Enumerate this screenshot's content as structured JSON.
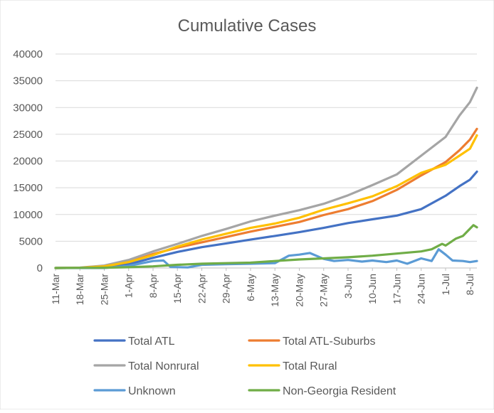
{
  "chart_data": {
    "type": "line",
    "title": "Cumulative Cases",
    "xlabel": "",
    "ylabel": "",
    "ylim": [
      0,
      40000
    ],
    "y_ticks": [
      0,
      5000,
      10000,
      15000,
      20000,
      25000,
      30000,
      35000,
      40000
    ],
    "x_start": "2020-03-11",
    "x_end": "2020-07-10",
    "x_tick_labels": [
      "11-Mar",
      "18-Mar",
      "25-Mar",
      "1-Apr",
      "8-Apr",
      "15-Apr",
      "22-Apr",
      "29-Apr",
      "6-May",
      "13-May",
      "20-May",
      "27-May",
      "3-Jun",
      "10-Jun",
      "17-Jun",
      "24-Jun",
      "1-Jul",
      "8-Jul"
    ],
    "grid": "horizontal",
    "legend_position": "bottom",
    "series": [
      {
        "name": "Total ATL",
        "color": "#4472C4",
        "points": [
          [
            "2020-03-11",
            0
          ],
          [
            "2020-03-18",
            20
          ],
          [
            "2020-03-25",
            150
          ],
          [
            "2020-04-01",
            700
          ],
          [
            "2020-04-08",
            1900
          ],
          [
            "2020-04-15",
            3000
          ],
          [
            "2020-04-22",
            3900
          ],
          [
            "2020-04-29",
            4600
          ],
          [
            "2020-05-06",
            5300
          ],
          [
            "2020-05-13",
            6000
          ],
          [
            "2020-05-20",
            6700
          ],
          [
            "2020-05-27",
            7500
          ],
          [
            "2020-06-03",
            8400
          ],
          [
            "2020-06-10",
            9100
          ],
          [
            "2020-06-17",
            9800
          ],
          [
            "2020-06-24",
            11000
          ],
          [
            "2020-07-01",
            13500
          ],
          [
            "2020-07-05",
            15300
          ],
          [
            "2020-07-08",
            16500
          ],
          [
            "2020-07-10",
            18000
          ]
        ]
      },
      {
        "name": "Total ATL-Suburbs",
        "color": "#ED7D31",
        "points": [
          [
            "2020-03-11",
            0
          ],
          [
            "2020-03-18",
            30
          ],
          [
            "2020-03-25",
            250
          ],
          [
            "2020-04-01",
            1100
          ],
          [
            "2020-04-08",
            2600
          ],
          [
            "2020-04-15",
            3800
          ],
          [
            "2020-04-22",
            4800
          ],
          [
            "2020-04-29",
            5800
          ],
          [
            "2020-05-06",
            6800
          ],
          [
            "2020-05-13",
            7700
          ],
          [
            "2020-05-20",
            8600
          ],
          [
            "2020-05-27",
            9900
          ],
          [
            "2020-06-03",
            11000
          ],
          [
            "2020-06-10",
            12500
          ],
          [
            "2020-06-17",
            14600
          ],
          [
            "2020-06-24",
            17300
          ],
          [
            "2020-07-01",
            19800
          ],
          [
            "2020-07-05",
            22000
          ],
          [
            "2020-07-08",
            24000
          ],
          [
            "2020-07-10",
            26000
          ]
        ]
      },
      {
        "name": "Total Nonrural",
        "color": "#A5A5A5",
        "points": [
          [
            "2020-03-11",
            0
          ],
          [
            "2020-03-18",
            60
          ],
          [
            "2020-03-25",
            450
          ],
          [
            "2020-04-01",
            1500
          ],
          [
            "2020-04-08",
            3100
          ],
          [
            "2020-04-15",
            4500
          ],
          [
            "2020-04-22",
            6000
          ],
          [
            "2020-04-29",
            7300
          ],
          [
            "2020-05-06",
            8700
          ],
          [
            "2020-05-13",
            9800
          ],
          [
            "2020-05-20",
            10800
          ],
          [
            "2020-05-27",
            12000
          ],
          [
            "2020-06-03",
            13600
          ],
          [
            "2020-06-10",
            15500
          ],
          [
            "2020-06-17",
            17500
          ],
          [
            "2020-06-24",
            21000
          ],
          [
            "2020-07-01",
            24500
          ],
          [
            "2020-07-05",
            28500
          ],
          [
            "2020-07-08",
            31000
          ],
          [
            "2020-07-10",
            33700
          ]
        ]
      },
      {
        "name": "Total Rural",
        "color": "#FFC000",
        "points": [
          [
            "2020-03-11",
            0
          ],
          [
            "2020-03-18",
            40
          ],
          [
            "2020-03-25",
            300
          ],
          [
            "2020-04-01",
            1100
          ],
          [
            "2020-04-08",
            2400
          ],
          [
            "2020-04-15",
            4000
          ],
          [
            "2020-04-22",
            5300
          ],
          [
            "2020-04-29",
            6400
          ],
          [
            "2020-05-06",
            7500
          ],
          [
            "2020-05-13",
            8300
          ],
          [
            "2020-05-20",
            9400
          ],
          [
            "2020-05-27",
            10900
          ],
          [
            "2020-06-03",
            12100
          ],
          [
            "2020-06-10",
            13400
          ],
          [
            "2020-06-17",
            15300
          ],
          [
            "2020-06-24",
            17800
          ],
          [
            "2020-07-01",
            19300
          ],
          [
            "2020-07-05",
            21000
          ],
          [
            "2020-07-08",
            22300
          ],
          [
            "2020-07-10",
            24800
          ]
        ]
      },
      {
        "name": "Unknown",
        "color": "#5B9BD5",
        "points": [
          [
            "2020-03-11",
            0
          ],
          [
            "2020-03-25",
            0
          ],
          [
            "2020-04-01",
            400
          ],
          [
            "2020-04-08",
            1300
          ],
          [
            "2020-04-11",
            1400
          ],
          [
            "2020-04-13",
            200
          ],
          [
            "2020-04-18",
            100
          ],
          [
            "2020-04-22",
            600
          ],
          [
            "2020-04-29",
            700
          ],
          [
            "2020-05-06",
            800
          ],
          [
            "2020-05-13",
            900
          ],
          [
            "2020-05-17",
            2300
          ],
          [
            "2020-05-20",
            2500
          ],
          [
            "2020-05-23",
            2800
          ],
          [
            "2020-05-27",
            1700
          ],
          [
            "2020-05-30",
            1300
          ],
          [
            "2020-06-03",
            1500
          ],
          [
            "2020-06-07",
            1200
          ],
          [
            "2020-06-10",
            1400
          ],
          [
            "2020-06-14",
            1100
          ],
          [
            "2020-06-17",
            1400
          ],
          [
            "2020-06-20",
            800
          ],
          [
            "2020-06-24",
            1800
          ],
          [
            "2020-06-27",
            1300
          ],
          [
            "2020-06-29",
            3500
          ],
          [
            "2020-07-01",
            2500
          ],
          [
            "2020-07-03",
            1400
          ],
          [
            "2020-07-06",
            1300
          ],
          [
            "2020-07-08",
            1100
          ],
          [
            "2020-07-10",
            1300
          ]
        ]
      },
      {
        "name": "Non-Georgia Resident",
        "color": "#70AD47",
        "points": [
          [
            "2020-03-11",
            0
          ],
          [
            "2020-03-25",
            50
          ],
          [
            "2020-04-01",
            150
          ],
          [
            "2020-04-08",
            300
          ],
          [
            "2020-04-15",
            600
          ],
          [
            "2020-04-22",
            800
          ],
          [
            "2020-04-29",
            900
          ],
          [
            "2020-05-06",
            1000
          ],
          [
            "2020-05-13",
            1300
          ],
          [
            "2020-05-20",
            1600
          ],
          [
            "2020-05-27",
            1800
          ],
          [
            "2020-06-03",
            2000
          ],
          [
            "2020-06-10",
            2300
          ],
          [
            "2020-06-17",
            2700
          ],
          [
            "2020-06-24",
            3100
          ],
          [
            "2020-06-27",
            3500
          ],
          [
            "2020-06-30",
            4500
          ],
          [
            "2020-07-01",
            4200
          ],
          [
            "2020-07-04",
            5500
          ],
          [
            "2020-07-06",
            6000
          ],
          [
            "2020-07-09",
            8000
          ],
          [
            "2020-07-10",
            7600
          ]
        ]
      }
    ]
  }
}
